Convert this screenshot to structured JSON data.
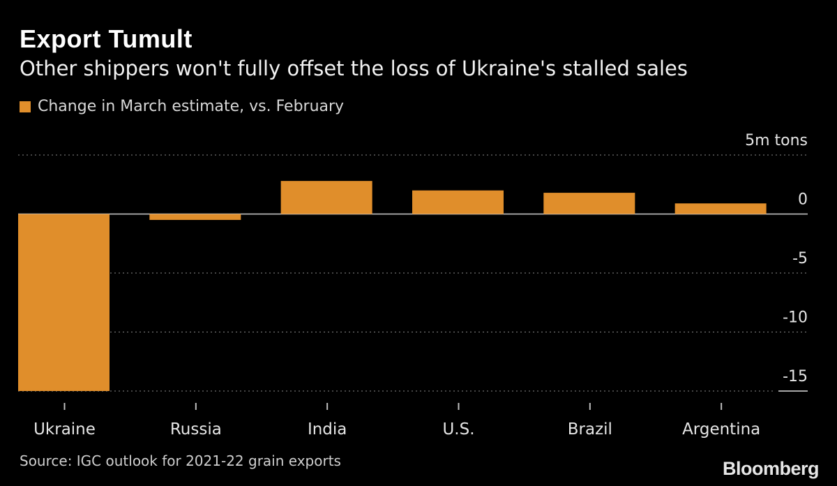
{
  "header": {
    "title": "Export Tumult",
    "subtitle": "Other shippers won't fully offset the loss of Ukraine's stalled sales"
  },
  "footer": {
    "source": "Source: IGC outlook for 2021-22 grain exports",
    "brand": "Bloomberg"
  },
  "colors": {
    "background": "#000000",
    "bar": "#e08e2b",
    "grid": "#8c8c8c",
    "text": "#ffffff"
  },
  "chart_data": {
    "type": "bar",
    "title": "Export Tumult",
    "subtitle": "Other shippers won't fully offset the loss of Ukraine's stalled sales",
    "categories": [
      "Ukraine",
      "Russia",
      "India",
      "U.S.",
      "Brazil",
      "Argentina"
    ],
    "series": [
      {
        "name": "Change in March estimate, vs. February",
        "values": [
          -15,
          -0.5,
          2.8,
          2.0,
          1.8,
          0.9
        ]
      }
    ],
    "xlabel": "",
    "ylabel": "",
    "ylim": [
      -15,
      5
    ],
    "yticks": [
      5,
      0,
      -5,
      -10,
      -15
    ],
    "ytick_labels": [
      "5m tons",
      "0",
      "-5",
      "-10",
      "-15"
    ],
    "grid": true,
    "legend": "top-left",
    "y_axis_position": "right"
  }
}
